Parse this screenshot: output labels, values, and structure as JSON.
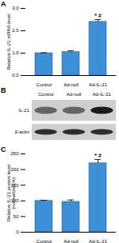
{
  "chart_data": [
    {
      "type": "bar",
      "title": "A",
      "categories": [
        "Control",
        "Ad-null",
        "Ad-IL-21"
      ],
      "values": [
        1.0,
        1.05,
        2.4
      ],
      "errors": [
        0.02,
        0.06,
        0.1
      ],
      "color": "#3d8fd6",
      "ylabel": "Relative IL-21 mRNA level",
      "ylim": [
        0,
        3
      ],
      "yticks": [
        0,
        1,
        2,
        3
      ],
      "annotations": [
        {
          "category": "Ad-IL-21",
          "text": "* #"
        }
      ]
    },
    {
      "type": "bar",
      "title": "C",
      "categories": [
        "Control",
        "Ad-null",
        "Ad-IL-21"
      ],
      "values": [
        100,
        97,
        220
      ],
      "errors": [
        2,
        6,
        12
      ],
      "color": "#3d8fd6",
      "ylabel": "Relative IL-21 protein level (normalized,%)",
      "ylim": [
        0,
        250
      ],
      "yticks": [
        0,
        50,
        100,
        150,
        200,
        250
      ],
      "annotations": [
        {
          "category": "Ad-IL-21",
          "text": "* #"
        }
      ]
    }
  ],
  "blot": {
    "title": "B",
    "lanes": [
      "Control",
      "Ad-null",
      "Ad-IL-21"
    ],
    "rows": [
      "IL-21",
      "β-actin"
    ]
  }
}
